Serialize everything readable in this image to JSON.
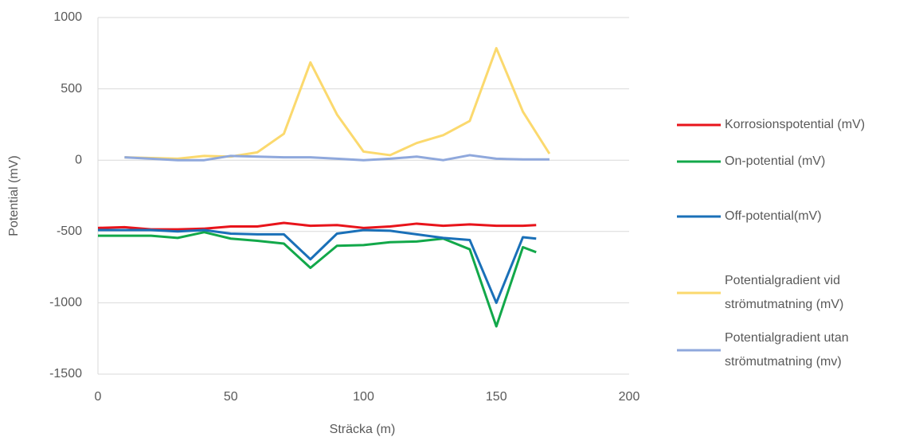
{
  "chart_data": {
    "type": "line",
    "x_label": "Sträcka (m)",
    "y_label": "Potential (mV)",
    "xlim": [
      0,
      200
    ],
    "xticks": [
      0,
      50,
      100,
      150,
      200
    ],
    "ylim": [
      -1500,
      1000
    ],
    "yticks": [
      -1500,
      -1000,
      -500,
      0,
      500,
      1000
    ],
    "grid": true,
    "legend": "right",
    "series": [
      {
        "name": "Korrosionspotential (mV)",
        "color": "#e8141b",
        "x": [
          0,
          10,
          20,
          30,
          40,
          50,
          60,
          70,
          80,
          90,
          100,
          110,
          120,
          130,
          140,
          150,
          160,
          165
        ],
        "values": [
          -475,
          -470,
          -485,
          -485,
          -480,
          -465,
          -465,
          -440,
          -460,
          -455,
          -475,
          -465,
          -445,
          -460,
          -450,
          -460,
          -460,
          -455
        ]
      },
      {
        "name": "On-potential (mV)",
        "color": "#12a84a",
        "x": [
          0,
          10,
          20,
          30,
          40,
          50,
          60,
          70,
          80,
          90,
          100,
          110,
          120,
          130,
          140,
          150,
          160,
          165
        ],
        "values": [
          -530,
          -530,
          -530,
          -545,
          -505,
          -550,
          -565,
          -585,
          -755,
          -600,
          -595,
          -575,
          -570,
          -550,
          -625,
          -1165,
          -610,
          -645
        ]
      },
      {
        "name": "Off-potential(mV)",
        "color": "#1a70b8",
        "x": [
          0,
          10,
          20,
          30,
          40,
          50,
          60,
          70,
          80,
          90,
          100,
          110,
          120,
          130,
          140,
          150,
          160,
          165
        ],
        "values": [
          -490,
          -490,
          -490,
          -500,
          -490,
          -515,
          -520,
          -520,
          -695,
          -515,
          -490,
          -495,
          -520,
          -545,
          -560,
          -1000,
          -540,
          -550
        ]
      },
      {
        "name": "Potentialgradient vid strömutmatning (mV)",
        "color": "#fbd96e",
        "x": [
          10,
          20,
          30,
          40,
          50,
          60,
          70,
          80,
          90,
          100,
          110,
          120,
          130,
          140,
          150,
          160,
          170
        ],
        "values": [
          20,
          15,
          10,
          30,
          25,
          55,
          185,
          685,
          320,
          60,
          35,
          120,
          175,
          275,
          785,
          340,
          45
        ]
      },
      {
        "name": "Potentialgradient utan strömutmatning (mv)",
        "color": "#8fa8dc",
        "x": [
          10,
          20,
          30,
          40,
          50,
          60,
          70,
          80,
          90,
          100,
          110,
          120,
          130,
          140,
          150,
          160,
          170
        ],
        "values": [
          20,
          10,
          0,
          0,
          30,
          25,
          20,
          20,
          10,
          0,
          10,
          25,
          0,
          35,
          10,
          5,
          5
        ]
      }
    ]
  }
}
